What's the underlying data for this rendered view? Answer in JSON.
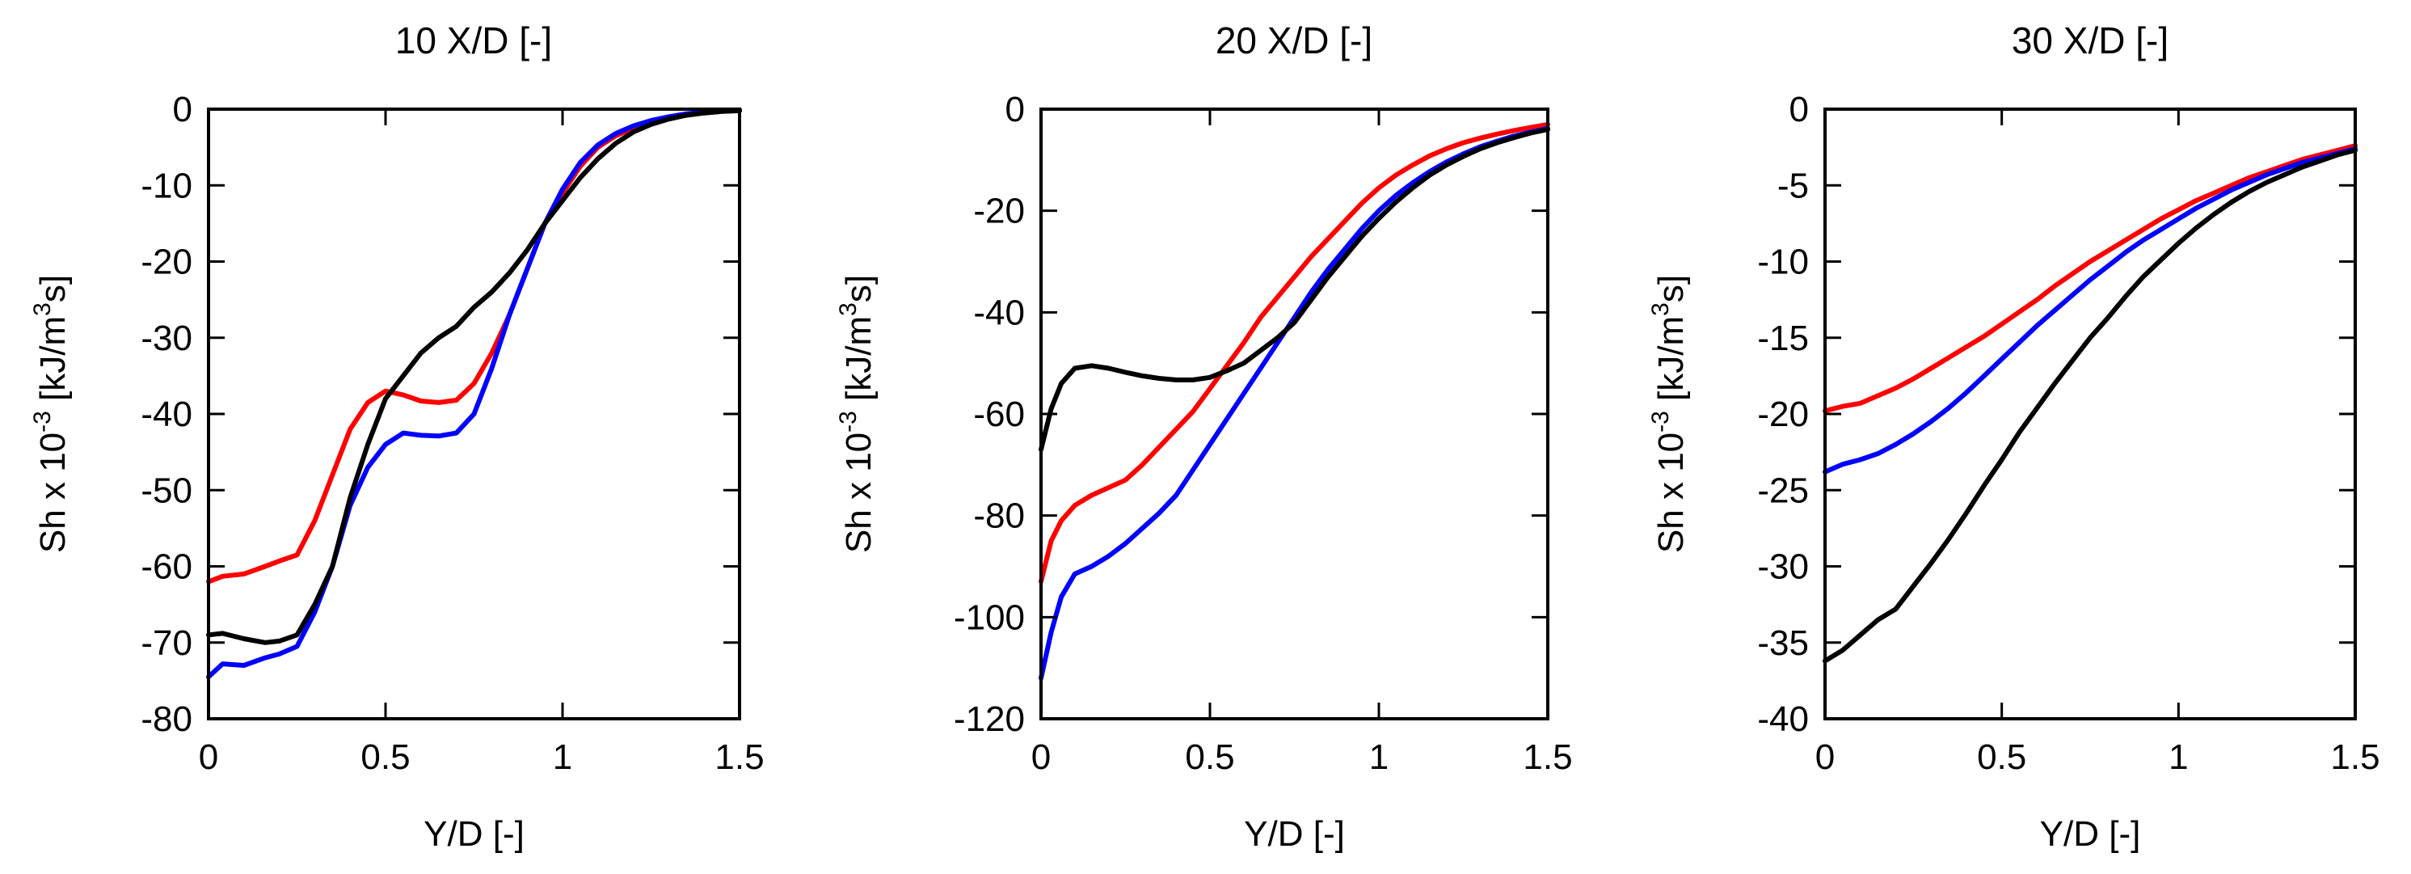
{
  "figure": {
    "colors": {
      "red": "#ff0000",
      "blue": "#0000ff",
      "black": "#000000"
    }
  },
  "chart_data": [
    {
      "type": "line",
      "title": "10 X/D [-]",
      "xlabel": "Y/D [-]",
      "ylabel": {
        "main": "Sh x 10",
        "exp": "-3",
        "unit1": " [kJ/m",
        "exp2": "3",
        "unit2": "s]"
      },
      "xlim": [
        0,
        1.5
      ],
      "ylim": [
        -80,
        0
      ],
      "xticks": [
        0,
        0.5,
        1,
        1.5
      ],
      "xtick_labels": [
        "0",
        "0.5",
        "1",
        "1.5"
      ],
      "yticks": [
        0,
        -10,
        -20,
        -30,
        -40,
        -50,
        -60,
        -70,
        -80
      ],
      "ytick_labels": [
        "0",
        "-10",
        "-20",
        "-30",
        "-40",
        "-50",
        "-60",
        "-70",
        "-80"
      ],
      "series": [
        {
          "name": "red",
          "color": "#ff0000",
          "x": [
            0,
            0.04,
            0.1,
            0.16,
            0.2,
            0.25,
            0.3,
            0.35,
            0.4,
            0.45,
            0.5,
            0.55,
            0.6,
            0.65,
            0.7,
            0.75,
            0.8,
            0.85,
            0.9,
            0.95,
            1.0,
            1.05,
            1.1,
            1.15,
            1.2,
            1.25,
            1.3,
            1.35,
            1.4,
            1.45,
            1.5
          ],
          "y": [
            -62,
            -61.3,
            -61,
            -60,
            -59.3,
            -58.5,
            -54,
            -48,
            -42,
            -38.5,
            -37,
            -37.5,
            -38.3,
            -38.5,
            -38.2,
            -36,
            -32,
            -27,
            -21,
            -15,
            -11,
            -7.5,
            -5,
            -3.5,
            -2.5,
            -1.8,
            -1.2,
            -0.8,
            -0.5,
            -0.3,
            -0.2
          ]
        },
        {
          "name": "blue",
          "color": "#0000ff",
          "x": [
            0,
            0.04,
            0.1,
            0.16,
            0.2,
            0.25,
            0.3,
            0.35,
            0.4,
            0.45,
            0.5,
            0.55,
            0.6,
            0.65,
            0.7,
            0.75,
            0.8,
            0.85,
            0.9,
            0.95,
            1.0,
            1.05,
            1.1,
            1.15,
            1.2,
            1.25,
            1.3,
            1.35,
            1.4,
            1.45,
            1.5
          ],
          "y": [
            -74.5,
            -72.8,
            -73,
            -72,
            -71.5,
            -70.5,
            -66,
            -60,
            -52,
            -47,
            -44,
            -42.5,
            -42.8,
            -42.9,
            -42.5,
            -40,
            -34,
            -27,
            -21,
            -15,
            -10.5,
            -7,
            -4.7,
            -3.2,
            -2.2,
            -1.5,
            -1,
            -0.6,
            -0.4,
            -0.2,
            -0.1
          ]
        },
        {
          "name": "black",
          "color": "#000000",
          "x": [
            0,
            0.04,
            0.1,
            0.16,
            0.2,
            0.25,
            0.3,
            0.35,
            0.4,
            0.45,
            0.5,
            0.55,
            0.6,
            0.65,
            0.7,
            0.75,
            0.8,
            0.85,
            0.9,
            0.95,
            1.0,
            1.05,
            1.1,
            1.15,
            1.2,
            1.25,
            1.3,
            1.35,
            1.4,
            1.45,
            1.5
          ],
          "y": [
            -69,
            -68.8,
            -69.5,
            -70,
            -69.8,
            -69,
            -65,
            -60,
            -51,
            -44,
            -38,
            -35,
            -32,
            -30,
            -28.5,
            -26,
            -24,
            -21.5,
            -18.5,
            -15,
            -12,
            -9,
            -6.5,
            -4.5,
            -3,
            -2,
            -1.3,
            -0.8,
            -0.5,
            -0.3,
            -0.2
          ]
        }
      ]
    },
    {
      "type": "line",
      "title": "20 X/D [-]",
      "xlabel": "Y/D [-]",
      "ylabel": {
        "main": "Sh x 10",
        "exp": "-3",
        "unit1": " [kJ/m",
        "exp2": "3",
        "unit2": "s]"
      },
      "xlim": [
        0,
        1.5
      ],
      "ylim": [
        -120,
        0
      ],
      "xticks": [
        0,
        0.5,
        1,
        1.5
      ],
      "xtick_labels": [
        "0",
        "0.5",
        "1",
        "1.5"
      ],
      "yticks": [
        0,
        -20,
        -40,
        -60,
        -80,
        -100,
        -120
      ],
      "ytick_labels": [
        "0",
        "-20",
        "-40",
        "-60",
        "-80",
        "-100",
        "-120"
      ],
      "series": [
        {
          "name": "red",
          "color": "#ff0000",
          "x": [
            0,
            0.03,
            0.06,
            0.1,
            0.15,
            0.2,
            0.25,
            0.3,
            0.35,
            0.4,
            0.45,
            0.5,
            0.55,
            0.6,
            0.65,
            0.7,
            0.75,
            0.8,
            0.85,
            0.9,
            0.95,
            1.0,
            1.05,
            1.1,
            1.15,
            1.2,
            1.25,
            1.3,
            1.35,
            1.4,
            1.45,
            1.5
          ],
          "y": [
            -93,
            -85,
            -81,
            -78,
            -76,
            -74.5,
            -73,
            -70,
            -66.5,
            -63,
            -59.5,
            -55,
            -50.5,
            -46,
            -41,
            -37,
            -33,
            -29,
            -25.5,
            -22,
            -18.5,
            -15.5,
            -13,
            -11,
            -9.2,
            -7.8,
            -6.6,
            -5.7,
            -4.9,
            -4.2,
            -3.6,
            -3
          ]
        },
        {
          "name": "blue",
          "color": "#0000ff",
          "x": [
            0,
            0.03,
            0.06,
            0.1,
            0.15,
            0.2,
            0.25,
            0.3,
            0.35,
            0.4,
            0.45,
            0.5,
            0.55,
            0.6,
            0.65,
            0.7,
            0.75,
            0.8,
            0.85,
            0.9,
            0.95,
            1.0,
            1.05,
            1.1,
            1.15,
            1.2,
            1.25,
            1.3,
            1.35,
            1.4,
            1.45,
            1.5
          ],
          "y": [
            -112,
            -103,
            -96,
            -91.5,
            -90,
            -88,
            -85.5,
            -82.5,
            -79.5,
            -76,
            -71,
            -66,
            -61,
            -56,
            -51,
            -46,
            -41,
            -36,
            -31.5,
            -27.5,
            -23.5,
            -20,
            -17,
            -14.5,
            -12.3,
            -10.4,
            -8.8,
            -7.4,
            -6.3,
            -5.3,
            -4.5,
            -3.8
          ]
        },
        {
          "name": "black",
          "color": "#000000",
          "x": [
            0,
            0.03,
            0.06,
            0.1,
            0.15,
            0.2,
            0.25,
            0.3,
            0.35,
            0.4,
            0.45,
            0.5,
            0.55,
            0.6,
            0.65,
            0.7,
            0.75,
            0.8,
            0.85,
            0.9,
            0.95,
            1.0,
            1.05,
            1.1,
            1.15,
            1.2,
            1.25,
            1.3,
            1.35,
            1.4,
            1.45,
            1.5
          ],
          "y": [
            -67,
            -59,
            -54,
            -51,
            -50.5,
            -51,
            -51.8,
            -52.5,
            -53,
            -53.3,
            -53.3,
            -52.8,
            -51.5,
            -50,
            -47.5,
            -45,
            -42,
            -37.5,
            -33,
            -29,
            -25,
            -21.5,
            -18.3,
            -15.5,
            -13,
            -11,
            -9.3,
            -7.8,
            -6.6,
            -5.6,
            -4.7,
            -4
          ]
        }
      ]
    },
    {
      "type": "line",
      "title": "30 X/D [-]",
      "xlabel": "Y/D [-]",
      "ylabel": {
        "main": "Sh x 10",
        "exp": "-3",
        "unit1": " [kJ/m",
        "exp2": "3",
        "unit2": "s]"
      },
      "xlim": [
        0,
        1.5
      ],
      "ylim": [
        -40,
        0
      ],
      "xticks": [
        0,
        0.5,
        1,
        1.5
      ],
      "xtick_labels": [
        "0",
        "0.5",
        "1",
        "1.5"
      ],
      "yticks": [
        0,
        -5,
        -10,
        -15,
        -20,
        -25,
        -30,
        -35,
        -40
      ],
      "ytick_labels": [
        "0",
        "-5",
        "-10",
        "-15",
        "-20",
        "-25",
        "-30",
        "-35",
        "-40"
      ],
      "series": [
        {
          "name": "red",
          "color": "#ff0000",
          "x": [
            0,
            0.05,
            0.1,
            0.15,
            0.2,
            0.25,
            0.3,
            0.35,
            0.4,
            0.45,
            0.5,
            0.55,
            0.6,
            0.65,
            0.7,
            0.75,
            0.8,
            0.85,
            0.9,
            0.95,
            1.0,
            1.05,
            1.1,
            1.15,
            1.2,
            1.25,
            1.3,
            1.35,
            1.4,
            1.45,
            1.5
          ],
          "y": [
            -19.8,
            -19.5,
            -19.3,
            -18.8,
            -18.3,
            -17.7,
            -17,
            -16.3,
            -15.6,
            -14.9,
            -14.1,
            -13.3,
            -12.5,
            -11.6,
            -10.8,
            -10,
            -9.3,
            -8.6,
            -7.9,
            -7.2,
            -6.6,
            -6,
            -5.5,
            -5,
            -4.5,
            -4.1,
            -3.7,
            -3.3,
            -3,
            -2.7,
            -2.4
          ]
        },
        {
          "name": "blue",
          "color": "#0000ff",
          "x": [
            0,
            0.05,
            0.1,
            0.15,
            0.2,
            0.25,
            0.3,
            0.35,
            0.4,
            0.45,
            0.5,
            0.55,
            0.6,
            0.65,
            0.7,
            0.75,
            0.8,
            0.85,
            0.9,
            0.95,
            1.0,
            1.05,
            1.1,
            1.15,
            1.2,
            1.25,
            1.3,
            1.35,
            1.4,
            1.45,
            1.5
          ],
          "y": [
            -23.8,
            -23.3,
            -23,
            -22.6,
            -22,
            -21.3,
            -20.5,
            -19.6,
            -18.6,
            -17.5,
            -16.4,
            -15.3,
            -14.2,
            -13.2,
            -12.2,
            -11.2,
            -10.3,
            -9.4,
            -8.6,
            -7.9,
            -7.2,
            -6.5,
            -5.9,
            -5.3,
            -4.8,
            -4.3,
            -3.9,
            -3.5,
            -3.2,
            -2.9,
            -2.6
          ]
        },
        {
          "name": "black",
          "color": "#000000",
          "x": [
            0,
            0.05,
            0.1,
            0.15,
            0.2,
            0.25,
            0.3,
            0.35,
            0.4,
            0.45,
            0.5,
            0.55,
            0.6,
            0.65,
            0.7,
            0.75,
            0.8,
            0.85,
            0.9,
            0.95,
            1.0,
            1.05,
            1.1,
            1.15,
            1.2,
            1.25,
            1.3,
            1.35,
            1.4,
            1.45,
            1.5
          ],
          "y": [
            -36.2,
            -35.5,
            -34.5,
            -33.5,
            -32.8,
            -31.3,
            -29.8,
            -28.2,
            -26.5,
            -24.7,
            -23,
            -21.2,
            -19.6,
            -18,
            -16.5,
            -15,
            -13.7,
            -12.3,
            -11,
            -9.9,
            -8.8,
            -7.8,
            -6.9,
            -6.1,
            -5.4,
            -4.8,
            -4.3,
            -3.8,
            -3.4,
            -3,
            -2.7
          ]
        }
      ]
    }
  ]
}
